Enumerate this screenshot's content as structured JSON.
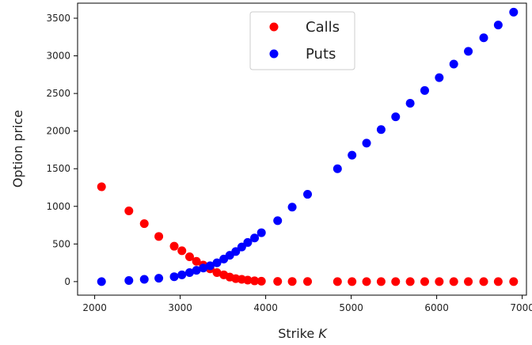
{
  "chart_data": {
    "type": "scatter",
    "title": "",
    "xlabel": "Strike",
    "xlabel_var": "K",
    "ylabel": "Option price",
    "xlim": [
      1800,
      7050
    ],
    "ylim": [
      -180,
      3700
    ],
    "xticks": [
      2000,
      3000,
      4000,
      5000,
      6000,
      7000
    ],
    "yticks": [
      0,
      500,
      1000,
      1500,
      2000,
      2500,
      3000,
      3500
    ],
    "grid": false,
    "legend_position": "upper-center",
    "series": [
      {
        "name": "Calls",
        "color": "#ff0000",
        "x": [
          2080,
          2400,
          2580,
          2750,
          2930,
          3020,
          3110,
          3190,
          3270,
          3350,
          3430,
          3510,
          3580,
          3650,
          3720,
          3790,
          3870,
          3950,
          4140,
          4310,
          4490,
          4840,
          5010,
          5180,
          5350,
          5520,
          5690,
          5860,
          6030,
          6200,
          6370,
          6550,
          6720,
          6900
        ],
        "y": [
          1260,
          940,
          770,
          600,
          470,
          410,
          330,
          270,
          220,
          170,
          120,
          90,
          60,
          40,
          30,
          20,
          10,
          5,
          3,
          2,
          1,
          0,
          0,
          0,
          0,
          0,
          0,
          0,
          0,
          0,
          0,
          0,
          0,
          0
        ]
      },
      {
        "name": "Puts",
        "color": "#0000ff",
        "x": [
          2080,
          2400,
          2580,
          2750,
          2930,
          3020,
          3110,
          3190,
          3270,
          3350,
          3430,
          3510,
          3580,
          3650,
          3720,
          3790,
          3870,
          3950,
          4140,
          4310,
          4490,
          4840,
          5010,
          5180,
          5350,
          5520,
          5690,
          5860,
          6030,
          6200,
          6370,
          6550,
          6720,
          6900
        ],
        "y": [
          0,
          15,
          30,
          45,
          65,
          90,
          120,
          150,
          180,
          210,
          250,
          300,
          350,
          400,
          460,
          520,
          580,
          650,
          810,
          990,
          1160,
          1500,
          1680,
          1840,
          2020,
          2190,
          2370,
          2540,
          2710,
          2890,
          3060,
          3240,
          3410,
          3580
        ]
      }
    ]
  }
}
